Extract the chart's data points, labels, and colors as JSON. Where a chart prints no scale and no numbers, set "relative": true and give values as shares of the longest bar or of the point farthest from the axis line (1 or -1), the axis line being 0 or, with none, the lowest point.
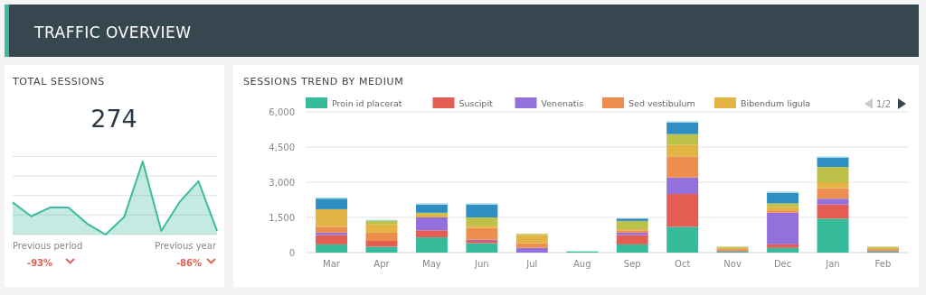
{
  "chart_data": [
    {
      "type": "other",
      "title": "TRAFFIC OVERVIEW"
    },
    {
      "type": "area",
      "title": "TOTAL SESSIONS",
      "relative": true,
      "grid": true,
      "color": "#3dbb9c",
      "categories": [
        null,
        null,
        null,
        null,
        null,
        null,
        null,
        null,
        null,
        null,
        null,
        null
      ],
      "values": [
        0.44,
        0.25,
        0.37,
        0.37,
        0.15,
        0,
        0.24,
        1,
        0.05,
        0.45,
        0.73,
        0.05
      ],
      "annotations": [
        "274",
        "Previous period",
        "-93%",
        "Previous year",
        "-86%"
      ]
    },
    {
      "type": "bar",
      "title": "SESSIONS TREND BY MEDIUM",
      "stacked": true,
      "grid": "y",
      "legend": "top",
      "categories": [
        "Mar",
        "Apr",
        "May",
        "Jun",
        "Jul",
        "Aug",
        "Sep",
        "Oct",
        "Nov",
        "Dec",
        "Jan",
        "Feb"
      ],
      "ylim": [
        0,
        6000
      ],
      "yticks": [
        0,
        {
          "value": 1500,
          "label": "1,500"
        },
        {
          "value": 3000,
          "label": "3,000"
        },
        {
          "value": 4500,
          "label": "4,500"
        },
        {
          "value": 6000,
          "label": "6,000"
        }
      ],
      "annotations": [
        "1/2"
      ],
      "series": [
        {
          "name": "Proin id placerat",
          "color": "#37bc9b",
          "values": [
            350,
            250,
            650,
            400,
            null,
            50,
            350,
            1100,
            50,
            200,
            1450,
            50
          ]
        },
        {
          "name": "Suscipit",
          "color": "#e35d52",
          "values": [
            400,
            250,
            300,
            100,
            null,
            null,
            400,
            1400,
            50,
            150,
            600,
            50
          ]
        },
        {
          "name": "Venenatis",
          "color": "#9370db",
          "values": [
            100,
            null,
            550,
            50,
            200,
            null,
            100,
            700,
            null,
            1350,
            250,
            null
          ]
        },
        {
          "name": "Sed vestibulum",
          "color": "#ed8e4f",
          "values": [
            250,
            350,
            null,
            500,
            200,
            null,
            100,
            900,
            50,
            100,
            450,
            50
          ]
        },
        {
          "name": "Bibendum ligula",
          "color": "#e2b443",
          "values": [
            750,
            350,
            150,
            100,
            350,
            null,
            50,
            500,
            50,
            150,
            250,
            50
          ]
        },
        {
          "color": "#bcc149",
          "values": [
            null,
            150,
            50,
            350,
            50,
            null,
            350,
            450,
            50,
            150,
            650,
            50
          ]
        },
        {
          "color": "#2f8fc4",
          "values": [
            450,
            null,
            350,
            550,
            null,
            null,
            100,
            500,
            null,
            450,
            400,
            null
          ]
        },
        {
          "color": "#9fd9e0",
          "values": [
            50,
            50,
            50,
            50,
            null,
            null,
            null,
            50,
            null,
            50,
            50,
            null
          ]
        }
      ]
    }
  ]
}
